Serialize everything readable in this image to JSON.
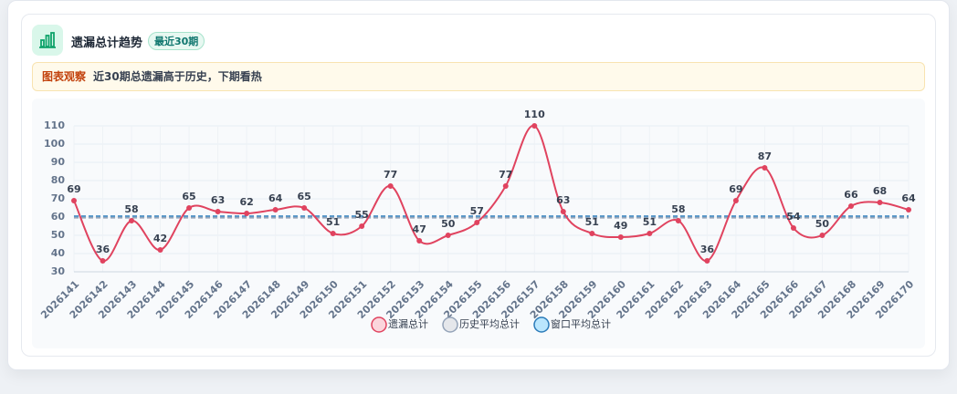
{
  "header": {
    "title": "遗漏总计趋势",
    "badge": "最近30期"
  },
  "note": {
    "label": "图表观察",
    "text": "近30期总遗漏高于历史，下期看热"
  },
  "chart_data": {
    "type": "line",
    "categories": [
      "2026141",
      "2026142",
      "2026143",
      "2026144",
      "2026145",
      "2026146",
      "2026147",
      "2026148",
      "2026149",
      "2026150",
      "2026151",
      "2026152",
      "2026153",
      "2026154",
      "2026155",
      "2026156",
      "2026157",
      "2026158",
      "2026159",
      "2026160",
      "2026161",
      "2026162",
      "2026163",
      "2026164",
      "2026165",
      "2026166",
      "2026167",
      "2026168",
      "2026169",
      "2026170"
    ],
    "series": [
      {
        "name": "遗漏总计",
        "color": "#e0435f",
        "fill": "#fbd5dc",
        "values": [
          69,
          36,
          58,
          42,
          65,
          63,
          62,
          64,
          65,
          51,
          55,
          77,
          47,
          50,
          57,
          77,
          110,
          63,
          51,
          49,
          51,
          58,
          36,
          69,
          87,
          54,
          50,
          66,
          68,
          64
        ]
      }
    ],
    "reference_lines": [
      {
        "name": "历史平均总计",
        "color": "#94a3b8",
        "fill": "#e5e7eb",
        "value": 59.6
      },
      {
        "name": "窗口平均总计",
        "color": "#2b7bb9",
        "fill": "#bae6fd",
        "value": 60.5
      }
    ],
    "ylim": [
      30,
      110
    ],
    "yticks": [
      30,
      40,
      50,
      60,
      70,
      80,
      90,
      100,
      110
    ],
    "grid": true
  }
}
